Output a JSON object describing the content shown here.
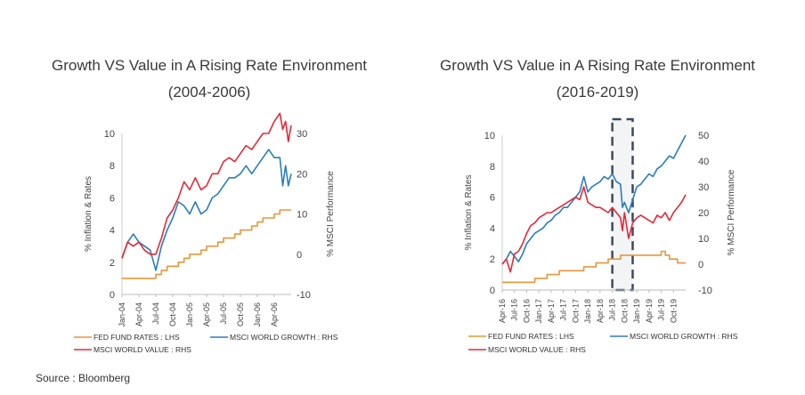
{
  "source": "Source : Bloomberg",
  "colors": {
    "fed": "#e8963c",
    "growth": "#2a7cbf",
    "value": "#e5283a",
    "axis": "#999999",
    "shade": "#f3f4f6",
    "box": "#3c4b5c"
  },
  "chart_data": [
    {
      "type": "line",
      "title": "Growth VS Value in A Rising Rate Environment",
      "subtitle": "(2004-2006)",
      "ylabel": "% Inflation & Rates",
      "y2label": "% MSCI Performance",
      "ylim": [
        0,
        10
      ],
      "y2lim": [
        -10,
        30
      ],
      "yticks": [
        0,
        2,
        4,
        6,
        8,
        10
      ],
      "y2ticks": [
        -10,
        0,
        10,
        20,
        30
      ],
      "xlim": [
        0,
        30
      ],
      "xticks": [
        "Jan-04",
        "Apr-04",
        "Jul-04",
        "Oct-04",
        "Jan-05",
        "Apr-05",
        "Jul-05",
        "Oct-05",
        "Jan-06",
        "Apr-06"
      ],
      "xtick_pos": [
        0,
        3,
        6,
        9,
        12,
        15,
        18,
        21,
        24,
        27
      ],
      "legend": [
        "FED FUND RATES : LHS",
        "MSCI WORLD GROWTH : RHS",
        "MSCI WORLD VALUE : RHS"
      ],
      "series": [
        {
          "name": "FED FUND RATES : LHS",
          "axis": "left",
          "step": true,
          "x": [
            0,
            6,
            7,
            8,
            10,
            11,
            12,
            14,
            15,
            17,
            18,
            20,
            21,
            23,
            24,
            25,
            27,
            28,
            30
          ],
          "y": [
            1.0,
            1.25,
            1.5,
            1.75,
            2.0,
            2.25,
            2.5,
            2.75,
            3.0,
            3.25,
            3.5,
            3.75,
            4.0,
            4.25,
            4.5,
            4.75,
            5.0,
            5.25,
            5.25
          ]
        },
        {
          "name": "MSCI WORLD GROWTH : RHS",
          "axis": "right",
          "x": [
            0,
            1,
            2,
            3,
            4,
            5,
            6,
            7,
            8,
            9,
            10,
            11,
            12,
            13,
            14,
            15,
            16,
            17,
            18,
            19,
            20,
            21,
            22,
            23,
            24,
            25,
            26,
            27,
            28,
            28.5,
            29,
            29.5,
            30
          ],
          "y": [
            -1,
            3,
            5,
            3,
            2,
            1,
            -4,
            2,
            6,
            9,
            13,
            12,
            10,
            13,
            10,
            11,
            14,
            15,
            17,
            19,
            19,
            20,
            22,
            20,
            22,
            24,
            26,
            24,
            24,
            17,
            22,
            17,
            20
          ]
        },
        {
          "name": "MSCI WORLD VALUE : RHS",
          "axis": "right",
          "x": [
            0,
            1,
            2,
            3,
            4,
            5,
            6,
            7,
            8,
            9,
            10,
            11,
            12,
            13,
            14,
            15,
            16,
            17,
            18,
            19,
            20,
            21,
            22,
            23,
            24,
            25,
            26,
            27,
            28,
            28.5,
            29,
            29.5,
            30
          ],
          "y": [
            -1,
            3,
            2,
            3,
            1,
            0,
            0,
            4,
            9,
            11,
            14,
            18,
            16,
            19,
            16,
            17,
            20,
            20,
            23,
            24,
            23,
            25,
            27,
            26,
            28,
            30,
            30,
            33,
            35,
            31,
            33,
            28,
            32
          ]
        }
      ]
    },
    {
      "type": "line",
      "title": "Growth VS Value in A Rising Rate Environment",
      "subtitle": "(2016-2019)",
      "ylabel": "% Inflation & Rates",
      "y2label": "% MSCI Performance",
      "ylim": [
        0,
        10
      ],
      "y2lim": [
        -10,
        50
      ],
      "yticks": [
        0,
        2,
        4,
        6,
        8,
        10
      ],
      "y2ticks": [
        -10,
        0,
        10,
        20,
        30,
        40,
        50
      ],
      "xlim": [
        0,
        45
      ],
      "xticks": [
        "Apr-16",
        "Jul-16",
        "Oct-16",
        "Jan-17",
        "Apr-17",
        "Jul-17",
        "Oct-17",
        "Jan-18",
        "Apr-18",
        "Jul-18",
        "Oct-18",
        "Jan-19",
        "Apr-19",
        "Jul-19",
        "Oct-19"
      ],
      "xtick_pos": [
        0,
        3,
        6,
        9,
        12,
        15,
        18,
        21,
        24,
        27,
        30,
        33,
        36,
        39,
        42
      ],
      "highlight": [
        27,
        32
      ],
      "legend": [
        "FED FUND RATES : LHS",
        "MSCI WORLD GROWTH : RHS",
        "MSCI WORLD VALUE : RHS"
      ],
      "series": [
        {
          "name": "FED FUND RATES : LHS",
          "axis": "left",
          "step": true,
          "x": [
            0,
            8,
            11,
            14,
            20,
            23,
            26,
            29,
            39,
            40,
            41,
            43,
            45
          ],
          "y": [
            0.5,
            0.75,
            1.0,
            1.25,
            1.5,
            1.75,
            2.0,
            2.25,
            2.5,
            2.25,
            2.0,
            1.75,
            1.75
          ]
        },
        {
          "name": "MSCI WORLD GROWTH : RHS",
          "axis": "right",
          "x": [
            0,
            1,
            2,
            3,
            4,
            5,
            6,
            7,
            8,
            9,
            10,
            11,
            12,
            13,
            14,
            15,
            16,
            17,
            18,
            19,
            20,
            21,
            22,
            23,
            24,
            25,
            26,
            27,
            28,
            29,
            29.5,
            30,
            31,
            32,
            33,
            34,
            35,
            36,
            37,
            38,
            39,
            40,
            41,
            42,
            43,
            44,
            45
          ],
          "y": [
            0,
            2,
            5,
            3,
            1,
            4,
            8,
            10,
            12,
            13,
            14,
            16,
            17,
            19,
            20,
            22,
            22,
            24,
            26,
            28,
            34,
            28,
            30,
            31,
            32,
            34,
            33,
            35,
            32,
            31,
            22,
            24,
            20,
            25,
            30,
            31,
            33,
            35,
            34,
            37,
            38,
            40,
            42,
            41,
            44,
            47,
            50
          ]
        },
        {
          "name": "MSCI WORLD VALUE : RHS",
          "axis": "right",
          "x": [
            0,
            1,
            2,
            3,
            4,
            5,
            6,
            7,
            8,
            9,
            10,
            11,
            12,
            13,
            14,
            15,
            16,
            17,
            18,
            19,
            20,
            21,
            22,
            23,
            24,
            25,
            26,
            27,
            28,
            29,
            29.5,
            30,
            31,
            32,
            33,
            34,
            35,
            36,
            37,
            38,
            39,
            40,
            41,
            42,
            43,
            44,
            45
          ],
          "y": [
            0,
            2,
            -3,
            4,
            5,
            8,
            12,
            15,
            16,
            18,
            19,
            20,
            20,
            21,
            22,
            23,
            24,
            25,
            26,
            25,
            30,
            24,
            23,
            22,
            22,
            21,
            20,
            22,
            20,
            18,
            13,
            20,
            10,
            16,
            18,
            19,
            18,
            17,
            16,
            19,
            18,
            20,
            17,
            20,
            22,
            24,
            27
          ]
        }
      ]
    }
  ]
}
